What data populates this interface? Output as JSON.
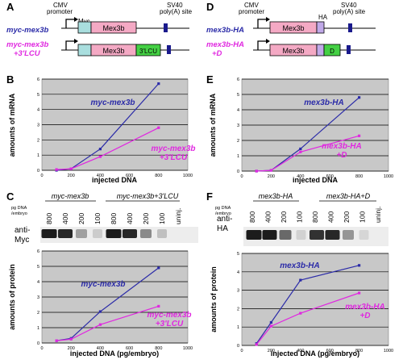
{
  "panels": {
    "A": {
      "letter": "A",
      "constructs": [
        {
          "name": "myc-mex3b",
          "row_label_lines": [
            "myc-mex3b"
          ]
        },
        {
          "name": "myc-mex3b +3'LCU",
          "row_label_lines": [
            "myc-mex3b",
            "+3'LCU"
          ]
        }
      ],
      "labels": {
        "cmv": [
          "CMV",
          "promoter"
        ],
        "myc": "Myc",
        "gene": "Mex3b",
        "lcu": "3'LCU",
        "sv40": [
          "SV40",
          "poly(A) site"
        ]
      }
    },
    "D": {
      "letter": "D",
      "constructs": [
        {
          "name": "mex3b-HA",
          "row_label_lines": [
            "mex3b-HA"
          ]
        },
        {
          "name": "mex3b-HA +D",
          "row_label_lines": [
            "mex3b-HA",
            "+D"
          ]
        }
      ],
      "labels": {
        "cmv": [
          "CMV",
          "promoter"
        ],
        "ha": "HA",
        "gene": "Mex3b",
        "d": "D",
        "sv40": [
          "SV40",
          "poly(A) site"
        ]
      }
    },
    "C": {
      "letter": "C",
      "blot": {
        "lanes": [
          "800",
          "400",
          "200",
          "100",
          "800",
          "400",
          "200",
          "100",
          "uninj."
        ],
        "groups": [
          "myc-mex3b",
          "myc-mex3b+3'LCU"
        ],
        "antibody": [
          "anti-",
          "Myc"
        ],
        "dose_label": [
          "pg DNA",
          "/embryo"
        ]
      }
    },
    "F": {
      "letter": "F",
      "blot": {
        "lanes": [
          "800",
          "400",
          "200",
          "100",
          "800",
          "400",
          "200",
          "100",
          "uninj."
        ],
        "groups": [
          "mex3b-HA",
          "mex3b-HA+D"
        ],
        "antibody": [
          "anti-",
          "HA"
        ],
        "dose_label": [
          "pg DNA",
          "/embryo"
        ]
      }
    },
    "B": {
      "letter": "B"
    },
    "E": {
      "letter": "E"
    }
  },
  "colors": {
    "series1": "#2b2ba8",
    "series2": "#e028e0",
    "plot_bg": "#c8c8c8",
    "gene_box": "#f4a9c4",
    "myc_box": "#a9dede",
    "lcu_box": "#44d044",
    "ha_box": "#c0a9e8",
    "d_box": "#44d044",
    "polyA": "#1a1a8c"
  },
  "chart_data": [
    {
      "panel": "B",
      "type": "line",
      "xlabel": "injected DNA",
      "ylabel": "amounts of mRNA",
      "xlim": [
        0,
        1000
      ],
      "xticks": [
        0,
        200,
        400,
        600,
        800,
        1000
      ],
      "ylim": [
        0,
        6
      ],
      "series": [
        {
          "name": "myc-mex3b",
          "x": [
            100,
            200,
            400,
            800
          ],
          "y": [
            0.0,
            0.1,
            1.4,
            5.7
          ]
        },
        {
          "name": "myc-mex3b +3'LCU",
          "x": [
            100,
            200,
            400,
            800
          ],
          "y": [
            0.05,
            0.1,
            0.9,
            2.8
          ]
        }
      ],
      "series_label_lines": [
        [
          "myc-mex3b"
        ],
        [
          "myc-mex3b",
          "+3'LCU"
        ]
      ]
    },
    {
      "panel": "E",
      "type": "line",
      "xlabel": "injected DNA",
      "ylabel": "amounts of mRNA",
      "xlim": [
        0,
        1000
      ],
      "xticks": [
        0,
        200,
        400,
        600,
        800,
        1000
      ],
      "ylim": [
        0,
        6
      ],
      "series": [
        {
          "name": "mex3b-HA",
          "x": [
            100,
            200,
            400,
            800
          ],
          "y": [
            0.0,
            0.05,
            1.45,
            4.8
          ]
        },
        {
          "name": "mex3b-HA +D",
          "x": [
            100,
            200,
            400,
            800
          ],
          "y": [
            0.0,
            0.05,
            1.25,
            2.3
          ]
        }
      ],
      "series_label_lines": [
        [
          "mex3b-HA"
        ],
        [
          "mex3b-HA",
          "+D"
        ]
      ]
    },
    {
      "panel": "C",
      "type": "line",
      "xlabel": "injected DNA (pg/embryo)",
      "ylabel": "amounts of protein",
      "xlim": [
        0,
        1000
      ],
      "xticks": [
        0,
        200,
        400,
        600,
        800,
        1000
      ],
      "ylim": [
        0,
        6
      ],
      "series": [
        {
          "name": "myc-mex3b",
          "x": [
            100,
            200,
            400,
            800
          ],
          "y": [
            0.15,
            0.3,
            2.05,
            4.9
          ]
        },
        {
          "name": "myc-mex3b +3'LCU",
          "x": [
            100,
            200,
            400,
            800
          ],
          "y": [
            0.15,
            0.25,
            1.2,
            2.4
          ]
        }
      ],
      "series_label_lines": [
        [
          "myc-mex3b"
        ],
        [
          "myc-mex3b",
          "+3'LCU"
        ]
      ]
    },
    {
      "panel": "F",
      "type": "line",
      "xlabel": "injected DNA (pg/embryo)",
      "ylabel": "amounts of protein",
      "xlim": [
        0,
        1000
      ],
      "xticks": [
        0,
        200,
        400,
        600,
        800,
        1000
      ],
      "ylim": [
        0,
        5
      ],
      "yticks": [
        0,
        1,
        2,
        3,
        4,
        5
      ],
      "series": [
        {
          "name": "mex3b-HA",
          "x": [
            100,
            200,
            400,
            800
          ],
          "y": [
            0.1,
            1.25,
            3.55,
            4.35
          ]
        },
        {
          "name": "mex3b-HA +D",
          "x": [
            100,
            200,
            400,
            800
          ],
          "y": [
            0.05,
            1.05,
            1.75,
            2.85
          ]
        }
      ],
      "series_label_lines": [
        [
          "mex3b-HA"
        ],
        [
          "mex3b-HA",
          "+D"
        ]
      ]
    }
  ]
}
